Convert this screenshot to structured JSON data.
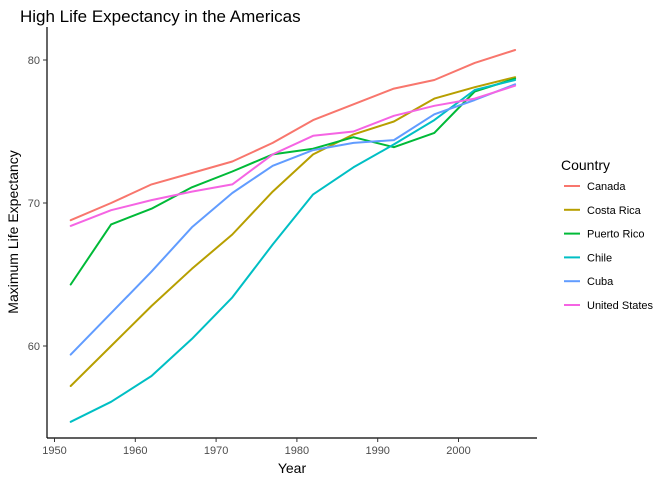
{
  "chart_data": {
    "type": "line",
    "title": "High Life Expectancy in the Americas",
    "xlabel": "Year",
    "ylabel": "Maximum Life Expectancy",
    "xlim": [
      1950,
      2010
    ],
    "ylim": [
      54,
      82
    ],
    "x_ticks": [
      1950,
      1960,
      1970,
      1980,
      1990,
      2000
    ],
    "y_ticks": [
      60,
      70,
      80
    ],
    "grid": false,
    "legend": {
      "title": "Country",
      "position": "right"
    },
    "x": [
      1952,
      1957,
      1962,
      1967,
      1972,
      1977,
      1982,
      1987,
      1992,
      1997,
      2002,
      2007
    ],
    "series": [
      {
        "name": "Canada",
        "color": "#F8766D",
        "values": [
          68.8,
          70.0,
          71.3,
          72.1,
          72.9,
          74.2,
          75.8,
          76.9,
          78.0,
          78.6,
          79.8,
          80.7
        ]
      },
      {
        "name": "Costa Rica",
        "color": "#B79F00",
        "values": [
          57.2,
          60.0,
          62.8,
          65.4,
          67.8,
          70.8,
          73.4,
          74.8,
          75.7,
          77.3,
          78.1,
          78.8
        ]
      },
      {
        "name": "Puerto Rico",
        "color": "#00BA38",
        "values": [
          64.3,
          68.5,
          69.6,
          71.1,
          72.2,
          73.4,
          73.8,
          74.6,
          73.9,
          74.9,
          77.8,
          78.7
        ]
      },
      {
        "name": "Chile",
        "color": "#00BFC4",
        "values": [
          54.7,
          56.1,
          57.9,
          60.5,
          63.4,
          67.1,
          70.6,
          72.5,
          74.1,
          75.8,
          77.9,
          78.6
        ]
      },
      {
        "name": "Cuba",
        "color": "#619CFF",
        "values": [
          59.4,
          62.3,
          65.2,
          68.3,
          70.7,
          72.6,
          73.7,
          74.2,
          74.4,
          76.2,
          77.2,
          78.3
        ]
      },
      {
        "name": "United States",
        "color": "#F564E3",
        "values": [
          68.4,
          69.5,
          70.2,
          70.8,
          71.3,
          73.4,
          74.7,
          75.0,
          76.1,
          76.8,
          77.3,
          78.2
        ]
      }
    ]
  }
}
